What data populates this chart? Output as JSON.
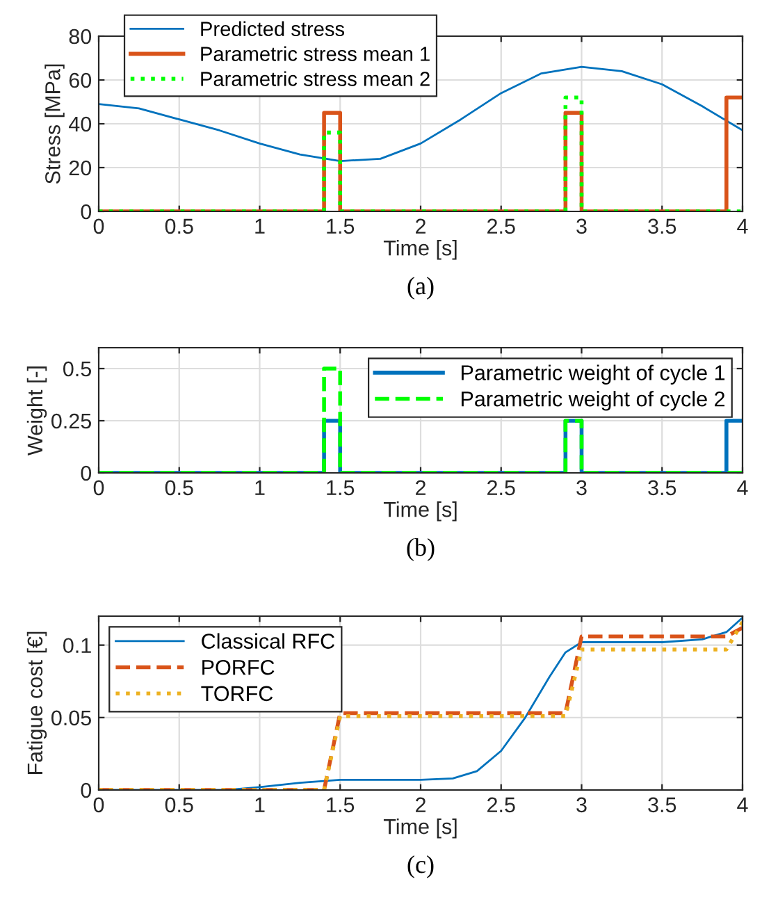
{
  "chart_data": [
    {
      "type": "line",
      "xlabel": "Time [s]",
      "ylabel": "Stress [MPa]",
      "annotations": [
        "(a)"
      ],
      "xlim": [
        0,
        4
      ],
      "ylim": [
        0,
        80
      ],
      "xticks": [
        0,
        0.5,
        1,
        1.5,
        2,
        2.5,
        3,
        3.5,
        4
      ],
      "yticks": [
        0,
        20,
        40,
        60,
        80
      ],
      "grid": true,
      "legend": "top left",
      "marker": "none",
      "series": [
        {
          "name": "Predicted stress",
          "color": "#0072bd",
          "line_style": "solid",
          "x": [
            0,
            0.25,
            0.5,
            0.75,
            1,
            1.25,
            1.5,
            1.75,
            2,
            2.25,
            2.5,
            2.75,
            3,
            3.25,
            3.5,
            3.75,
            4
          ],
          "values": [
            49,
            47,
            42,
            37,
            31,
            26,
            23,
            24,
            31,
            42,
            54,
            63,
            66,
            64,
            58,
            48,
            37
          ]
        },
        {
          "name": "Parametric stress mean 1",
          "color": "#d95319",
          "line_style": "solid",
          "x": [
            0,
            1.4,
            1.4,
            1.5,
            1.5,
            2.9,
            2.9,
            3,
            3,
            3.9,
            3.9,
            4
          ],
          "values": [
            0,
            0,
            45,
            45,
            0,
            0,
            45,
            45,
            0,
            0,
            52,
            52
          ]
        },
        {
          "name": "Parametric stress mean 2",
          "color": "#00ff00",
          "line_style": "dotted",
          "x": [
            0,
            1.4,
            1.4,
            1.5,
            1.5,
            2.9,
            2.9,
            3,
            3,
            4
          ],
          "values": [
            0,
            0,
            36,
            36,
            0,
            0,
            52,
            52,
            0,
            0
          ]
        }
      ]
    },
    {
      "type": "line",
      "xlabel": "Time [s]",
      "ylabel": "Weight [-]",
      "annotations": [
        "(b)"
      ],
      "xlim": [
        0,
        4
      ],
      "ylim": [
        0,
        0.6
      ],
      "xticks": [
        0,
        0.5,
        1,
        1.5,
        2,
        2.5,
        3,
        3.5,
        4
      ],
      "yticks": [
        0,
        0.25,
        0.5
      ],
      "grid": true,
      "legend": "top right",
      "marker": "none",
      "series": [
        {
          "name": "Parametric weight of cycle 1",
          "color": "#0072bd",
          "line_style": "solid",
          "x": [
            0,
            1.4,
            1.4,
            1.5,
            1.5,
            2.9,
            2.9,
            3,
            3,
            3.9,
            3.9,
            4
          ],
          "values": [
            0,
            0,
            0.25,
            0.25,
            0,
            0,
            0.25,
            0.25,
            0,
            0,
            0.25,
            0.25
          ]
        },
        {
          "name": "Parametric weight of cycle 2",
          "color": "#00ff00",
          "line_style": "dashed",
          "x": [
            0,
            1.4,
            1.4,
            1.5,
            1.5,
            2.9,
            2.9,
            3,
            3,
            4
          ],
          "values": [
            0,
            0,
            0.5,
            0.5,
            0,
            0,
            0.25,
            0.25,
            0,
            0
          ]
        }
      ]
    },
    {
      "type": "line",
      "xlabel": "Time [s]",
      "ylabel": "Fatigue cost [€]",
      "annotations": [
        "(c)"
      ],
      "xlim": [
        0,
        4
      ],
      "ylim": [
        0,
        0.12
      ],
      "xticks": [
        0,
        0.5,
        1,
        1.5,
        2,
        2.5,
        3,
        3.5,
        4
      ],
      "yticks": [
        0,
        0.05,
        0.1
      ],
      "grid": true,
      "legend": "top left",
      "marker": "none",
      "series": [
        {
          "name": "Classical RFC",
          "color": "#0072bd",
          "line_style": "solid",
          "x": [
            0,
            0.8,
            1,
            1.25,
            1.5,
            2,
            2.2,
            2.35,
            2.5,
            2.65,
            2.8,
            2.9,
            3,
            3.5,
            3.75,
            3.9,
            4
          ],
          "values": [
            0,
            0,
            0.002,
            0.005,
            0.007,
            0.007,
            0.008,
            0.013,
            0.027,
            0.05,
            0.078,
            0.095,
            0.102,
            0.102,
            0.104,
            0.109,
            0.119
          ]
        },
        {
          "name": "PORFC",
          "color": "#d95319",
          "line_style": "dashed",
          "x": [
            0,
            1.4,
            1.5,
            2.9,
            3,
            3.9,
            4
          ],
          "values": [
            0,
            0,
            0.053,
            0.053,
            0.106,
            0.106,
            0.112
          ]
        },
        {
          "name": "TORFC",
          "color": "#edb120",
          "line_style": "dotted",
          "x": [
            0,
            1.4,
            1.5,
            2.9,
            3,
            3.9,
            4
          ],
          "values": [
            0,
            0,
            0.051,
            0.051,
            0.097,
            0.097,
            0.116
          ]
        }
      ]
    }
  ]
}
